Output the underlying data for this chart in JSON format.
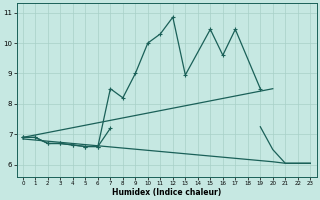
{
  "xlabel": "Humidex (Indice chaleur)",
  "background_color": "#c6e8e2",
  "grid_color": "#a8d0c8",
  "line_color": "#1a6058",
  "xlim": [
    -0.5,
    23.5
  ],
  "ylim": [
    5.6,
    11.3
  ],
  "xticks": [
    0,
    1,
    2,
    3,
    4,
    5,
    6,
    7,
    8,
    9,
    10,
    11,
    12,
    13,
    14,
    15,
    16,
    17,
    18,
    19,
    20,
    21,
    22,
    23
  ],
  "yticks": [
    6,
    7,
    8,
    9,
    10,
    11
  ],
  "line1_x": [
    0,
    1,
    2,
    3,
    4,
    5,
    6,
    7,
    8,
    9,
    10,
    11,
    12,
    13,
    15,
    16,
    17,
    19
  ],
  "line1_y": [
    6.9,
    6.9,
    6.7,
    6.7,
    6.65,
    6.6,
    6.6,
    8.5,
    8.2,
    9.0,
    10.0,
    10.3,
    10.85,
    8.95,
    10.45,
    9.6,
    10.45,
    8.5
  ],
  "line2_x": [
    0,
    1,
    2,
    3,
    4,
    5,
    6,
    7
  ],
  "line2_y": [
    6.9,
    6.9,
    6.7,
    6.7,
    6.65,
    6.6,
    6.6,
    7.2
  ],
  "line3_x": [
    0,
    20
  ],
  "line3_y": [
    6.9,
    8.5
  ],
  "line4_x": [
    0,
    20,
    21,
    22,
    23
  ],
  "line4_y": [
    6.85,
    6.1,
    6.05,
    6.05,
    6.05
  ],
  "line5_x": [
    19,
    20,
    21,
    22,
    23
  ],
  "line5_y": [
    7.25,
    6.5,
    6.05,
    6.05,
    6.05
  ]
}
